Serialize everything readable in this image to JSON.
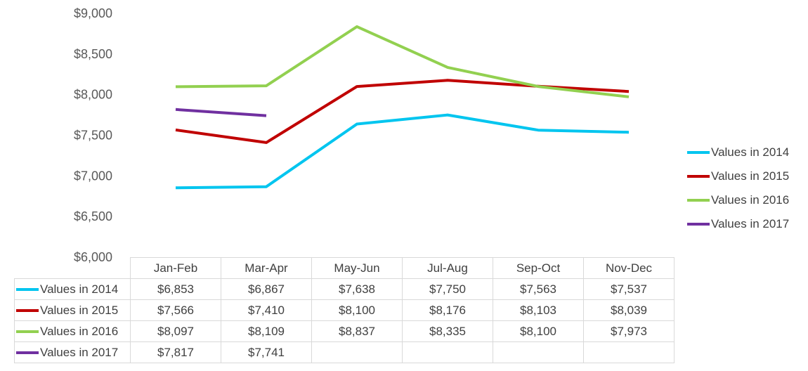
{
  "chart_data": {
    "type": "line",
    "categories": [
      "Jan-Feb",
      "Mar-Apr",
      "May-Jun",
      "Jul-Aug",
      "Sep-Oct",
      "Nov-Dec"
    ],
    "y_ticks": [
      "$6,000",
      "$6,500",
      "$7,000",
      "$7,500",
      "$8,000",
      "$8,500",
      "$9,000"
    ],
    "ylim": [
      6000,
      9000
    ],
    "legend_position": "right",
    "data_table": true,
    "series": [
      {
        "name": "Values in 2014",
        "color": "#00c5ef",
        "values": [
          6853,
          6867,
          7638,
          7750,
          7563,
          7537
        ],
        "labels": [
          "$6,853",
          "$6,867",
          "$7,638",
          "$7,750",
          "$7,563",
          "$7,537"
        ]
      },
      {
        "name": "Values in 2015",
        "color": "#c00000",
        "values": [
          7566,
          7410,
          8100,
          8176,
          8103,
          8039
        ],
        "labels": [
          "$7,566",
          "$7,410",
          "$8,100",
          "$8,176",
          "$8,103",
          "$8,039"
        ]
      },
      {
        "name": "Values in 2016",
        "color": "#92d050",
        "values": [
          8097,
          8109,
          8837,
          8335,
          8100,
          7973
        ],
        "labels": [
          "$8,097",
          "$8,109",
          "$8,837",
          "$8,335",
          "$8,100",
          "$7,973"
        ]
      },
      {
        "name": "Values in 2017",
        "color": "#7030a0",
        "values": [
          7817,
          7741,
          null,
          null,
          null,
          null
        ],
        "labels": [
          "$7,817",
          "$7,741",
          "",
          "",
          "",
          ""
        ]
      }
    ]
  }
}
